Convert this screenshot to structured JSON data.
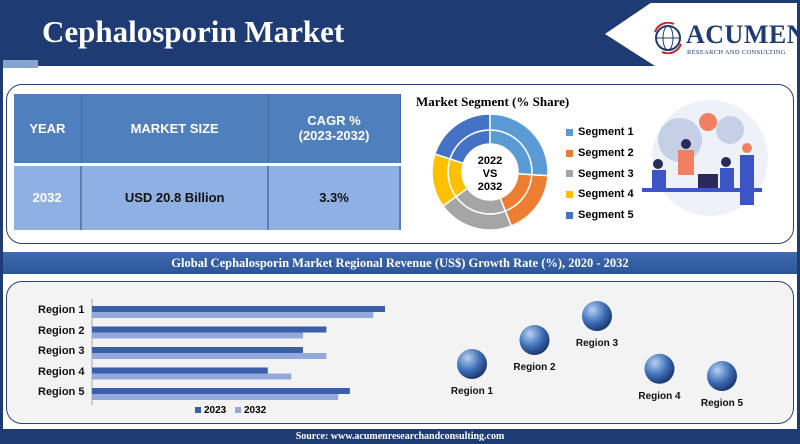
{
  "header": {
    "title": "Cephalosporin Market",
    "logo_text": "ACUMEN",
    "logo_subtext": "RESEARCH AND CONSULTING"
  },
  "summary_table": {
    "headers": [
      "YEAR",
      "MARKET SIZE",
      "CAGR %\n(2023-2032)"
    ],
    "header_cagr_line1": "CAGR %",
    "header_cagr_line2": "(2023-2032)",
    "row": [
      "2032",
      "USD 20.8 Billion",
      "3.3%"
    ]
  },
  "colors": {
    "navy": "#1f3b73",
    "header_blue": "#4f7fbd",
    "cell_blue": "#8fb0e3",
    "series_2023": "#3a5ea8",
    "series_2032": "#93a9dc"
  },
  "banner": "Global Cephalosporin Market Regional Revenue (US$) Growth Rate (%), 2020 - 2032",
  "footer": "Source: www.acumenresearchandconsulting.com",
  "illustration": "team-brainstorming-illustration",
  "chart_data": [
    {
      "type": "pie",
      "title": "Market Segment (% Share)",
      "center_label": [
        "2022",
        "VS",
        "2032"
      ],
      "categories": [
        "Segment 1",
        "Segment 2",
        "Segment 3",
        "Segment 4",
        "Segment 5"
      ],
      "colors": [
        "#5b9bd5",
        "#ed7d31",
        "#a5a5a5",
        "#ffc000",
        "#4472c4"
      ],
      "series": [
        {
          "name": "2022",
          "values": [
            26,
            18,
            21,
            15,
            20
          ]
        },
        {
          "name": "2032",
          "values": [
            26,
            18,
            21,
            15,
            20
          ]
        }
      ],
      "legend": "right"
    },
    {
      "type": "bar",
      "orientation": "horizontal",
      "categories": [
        "Region 1",
        "Region 2",
        "Region 3",
        "Region 4",
        "Region 5"
      ],
      "series": [
        {
          "name": "2023",
          "values": [
            100,
            80,
            72,
            60,
            88
          ]
        },
        {
          "name": "2032",
          "values": [
            96,
            72,
            80,
            68,
            84
          ]
        }
      ],
      "legend": "bottom",
      "xaxis_labels": false,
      "grid": false
    },
    {
      "type": "scatter",
      "style": "bubbles",
      "categories": [
        "Region 1",
        "Region 2",
        "Region 3",
        "Region 4",
        "Region 5"
      ],
      "values": [
        2,
        3,
        4,
        1.8,
        1.5
      ]
    }
  ]
}
